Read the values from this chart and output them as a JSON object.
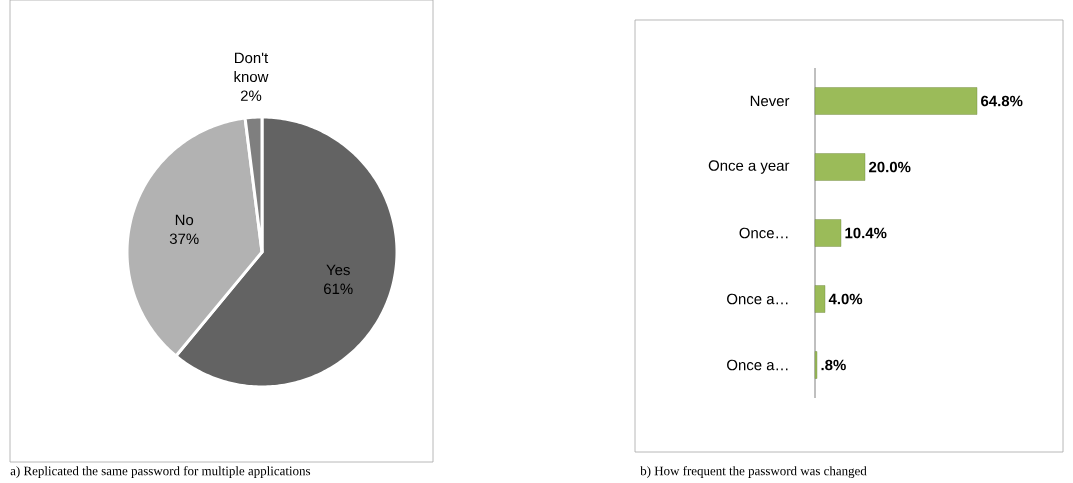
{
  "chart_data": [
    {
      "type": "pie",
      "categories": [
        "Yes",
        "No",
        "Don't know"
      ],
      "values": [
        61,
        37,
        2
      ],
      "value_labels": [
        "61%",
        "37%",
        "2%"
      ],
      "colors": [
        "#636363",
        "#b2b2b2",
        "#7f7f7f"
      ],
      "annotations": [
        "a) Replicated the same password for multiple applications"
      ]
    },
    {
      "type": "bar",
      "orientation": "horizontal",
      "categories": [
        "Never",
        "Once a year",
        "Once…",
        "Once a…",
        "Once a…"
      ],
      "values": [
        64.8,
        20.0,
        10.4,
        4.0,
        0.8
      ],
      "value_labels": [
        "64.8%",
        "20.0%",
        "10.4%",
        "4.0%",
        ".8%"
      ],
      "color": "#9bbb59",
      "annotations": [
        "b) How frequent the password was changed"
      ]
    }
  ]
}
